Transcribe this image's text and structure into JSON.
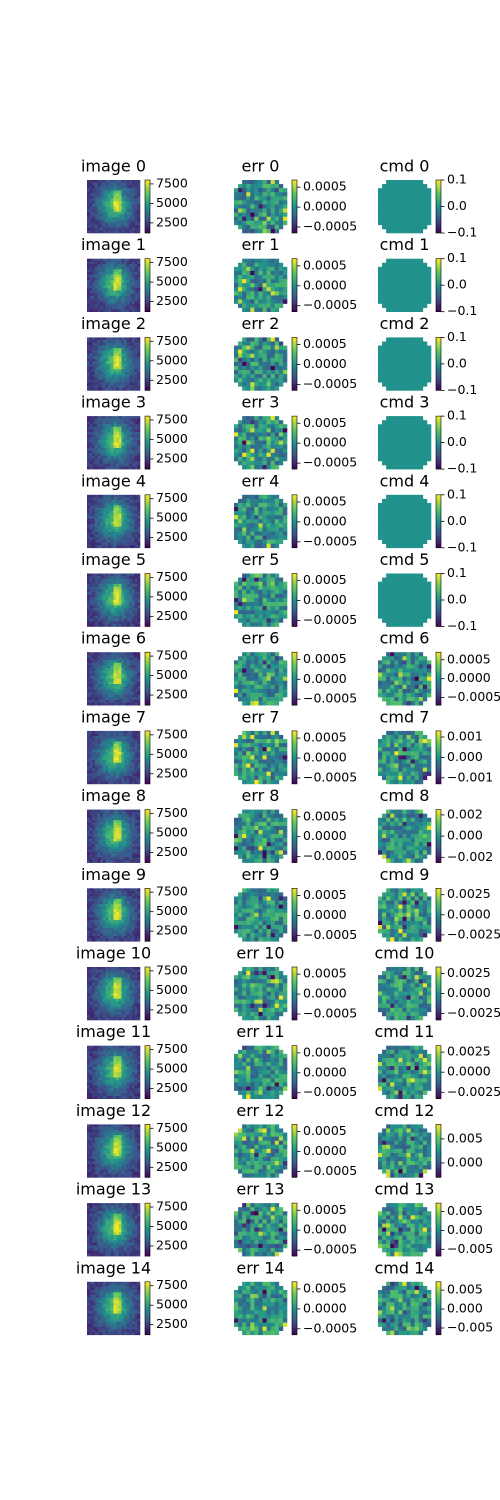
{
  "chart_data": [
    {
      "type": "heatmap",
      "title": "image 0",
      "clim": [
        1200,
        8000
      ],
      "cticks": [
        2500,
        5000,
        7500
      ]
    },
    {
      "type": "heatmap",
      "title": "err 0",
      "clim": [
        -0.00065,
        0.00068
      ],
      "cticks": [
        {
          "value": -0.0005,
          "label": "−0.0005"
        },
        {
          "value": 0,
          "label": "0.0000"
        },
        {
          "value": 0.0005,
          "label": "0.0005"
        }
      ]
    },
    {
      "type": "heatmap",
      "title": "cmd 0",
      "clim": [
        -0.1,
        0.1
      ],
      "cticks": [
        {
          "value": -0.1,
          "label": "−0.1"
        },
        {
          "value": 0,
          "label": "0.0"
        },
        0.1
      ]
    },
    {
      "type": "heatmap",
      "title": "image 1",
      "clim": [
        1200,
        8000
      ],
      "cticks": [
        2500,
        5000,
        7500
      ]
    },
    {
      "type": "heatmap",
      "title": "err 1",
      "clim": [
        -0.00065,
        0.00068
      ],
      "cticks": [
        {
          "value": -0.0005,
          "label": "−0.0005"
        },
        {
          "value": 0,
          "label": "0.0000"
        },
        {
          "value": 0.0005,
          "label": "0.0005"
        }
      ]
    },
    {
      "type": "heatmap",
      "title": "cmd 1",
      "clim": [
        -0.1,
        0.1
      ],
      "cticks": [
        {
          "value": -0.1,
          "label": "−0.1"
        },
        {
          "value": 0,
          "label": "0.0"
        },
        0.1
      ]
    },
    {
      "type": "heatmap",
      "title": "image 2",
      "clim": [
        1200,
        8000
      ],
      "cticks": [
        2500,
        5000,
        7500
      ]
    },
    {
      "type": "heatmap",
      "title": "err 2",
      "clim": [
        -0.00065,
        0.00068
      ],
      "cticks": [
        {
          "value": -0.0005,
          "label": "−0.0005"
        },
        {
          "value": 0,
          "label": "0.0000"
        },
        {
          "value": 0.0005,
          "label": "0.0005"
        }
      ]
    },
    {
      "type": "heatmap",
      "title": "cmd 2",
      "clim": [
        -0.1,
        0.1
      ],
      "cticks": [
        {
          "value": -0.1,
          "label": "−0.1"
        },
        {
          "value": 0,
          "label": "0.0"
        },
        0.1
      ]
    },
    {
      "type": "heatmap",
      "title": "image 3",
      "clim": [
        1200,
        8000
      ],
      "cticks": [
        2500,
        5000,
        7500
      ]
    },
    {
      "type": "heatmap",
      "title": "err 3",
      "clim": [
        -0.00065,
        0.00068
      ],
      "cticks": [
        {
          "value": -0.0005,
          "label": "−0.0005"
        },
        {
          "value": 0,
          "label": "0.0000"
        },
        {
          "value": 0.0005,
          "label": "0.0005"
        }
      ]
    },
    {
      "type": "heatmap",
      "title": "cmd 3",
      "clim": [
        -0.1,
        0.1
      ],
      "cticks": [
        {
          "value": -0.1,
          "label": "−0.1"
        },
        {
          "value": 0,
          "label": "0.0"
        },
        0.1
      ]
    },
    {
      "type": "heatmap",
      "title": "image 4",
      "clim": [
        1200,
        8000
      ],
      "cticks": [
        2500,
        5000,
        7500
      ]
    },
    {
      "type": "heatmap",
      "title": "err 4",
      "clim": [
        -0.00065,
        0.00068
      ],
      "cticks": [
        {
          "value": -0.0005,
          "label": "−0.0005"
        },
        {
          "value": 0,
          "label": "0.0000"
        },
        {
          "value": 0.0005,
          "label": "0.0005"
        }
      ]
    },
    {
      "type": "heatmap",
      "title": "cmd 4",
      "clim": [
        -0.1,
        0.1
      ],
      "cticks": [
        {
          "value": -0.1,
          "label": "−0.1"
        },
        {
          "value": 0,
          "label": "0.0"
        },
        0.1
      ]
    },
    {
      "type": "heatmap",
      "title": "image 5",
      "clim": [
        1200,
        8000
      ],
      "cticks": [
        2500,
        5000,
        7500
      ]
    },
    {
      "type": "heatmap",
      "title": "err 5",
      "clim": [
        -0.00065,
        0.00068
      ],
      "cticks": [
        {
          "value": -0.0005,
          "label": "−0.0005"
        },
        {
          "value": 0,
          "label": "0.0000"
        },
        {
          "value": 0.0005,
          "label": "0.0005"
        }
      ]
    },
    {
      "type": "heatmap",
      "title": "cmd 5",
      "clim": [
        -0.1,
        0.1
      ],
      "cticks": [
        {
          "value": -0.1,
          "label": "−0.1"
        },
        {
          "value": 0,
          "label": "0.0"
        },
        0.1
      ]
    },
    {
      "type": "heatmap",
      "title": "image 6",
      "clim": [
        1200,
        8000
      ],
      "cticks": [
        2500,
        5000,
        7500
      ]
    },
    {
      "type": "heatmap",
      "title": "err 6",
      "clim": [
        -0.00065,
        0.00068
      ],
      "cticks": [
        {
          "value": -0.0005,
          "label": "−0.0005"
        },
        {
          "value": 0,
          "label": "0.0000"
        },
        {
          "value": 0.0005,
          "label": "0.0005"
        }
      ]
    },
    {
      "type": "heatmap",
      "title": "cmd 6",
      "clim": [
        -0.0007,
        0.0007
      ],
      "cticks": [
        {
          "value": -0.0005,
          "label": "−0.0005"
        },
        {
          "value": 0,
          "label": "0.0000"
        },
        {
          "value": 0.0005,
          "label": "0.0005"
        }
      ]
    },
    {
      "type": "heatmap",
      "title": "image 7",
      "clim": [
        1200,
        8000
      ],
      "cticks": [
        2500,
        5000,
        7500
      ]
    },
    {
      "type": "heatmap",
      "title": "err 7",
      "clim": [
        -0.00065,
        0.00068
      ],
      "cticks": [
        {
          "value": -0.0005,
          "label": "−0.0005"
        },
        {
          "value": 0,
          "label": "0.0000"
        },
        {
          "value": 0.0005,
          "label": "0.0005"
        }
      ]
    },
    {
      "type": "heatmap",
      "title": "cmd 7",
      "clim": [
        -0.0013,
        0.0013
      ],
      "cticks": [
        {
          "value": -0.001,
          "label": "−0.001"
        },
        {
          "value": 0,
          "label": "0.000"
        },
        0.001
      ]
    },
    {
      "type": "heatmap",
      "title": "image 8",
      "clim": [
        1200,
        8000
      ],
      "cticks": [
        2500,
        5000,
        7500
      ]
    },
    {
      "type": "heatmap",
      "title": "err 8",
      "clim": [
        -0.00065,
        0.00068
      ],
      "cticks": [
        {
          "value": -0.0005,
          "label": "−0.0005"
        },
        {
          "value": 0,
          "label": "0.0000"
        },
        {
          "value": 0.0005,
          "label": "0.0005"
        }
      ]
    },
    {
      "type": "heatmap",
      "title": "cmd 8",
      "clim": [
        -0.0025,
        0.0025
      ],
      "cticks": [
        {
          "value": -0.002,
          "label": "−0.002"
        },
        {
          "value": 0,
          "label": "0.000"
        },
        0.002
      ]
    },
    {
      "type": "heatmap",
      "title": "image 9",
      "clim": [
        1200,
        8000
      ],
      "cticks": [
        2500,
        5000,
        7500
      ]
    },
    {
      "type": "heatmap",
      "title": "err 9",
      "clim": [
        -0.00065,
        0.00068
      ],
      "cticks": [
        {
          "value": -0.0005,
          "label": "−0.0005"
        },
        {
          "value": 0,
          "label": "0.0000"
        },
        {
          "value": 0.0005,
          "label": "0.0005"
        }
      ]
    },
    {
      "type": "heatmap",
      "title": "cmd 9",
      "clim": [
        -0.0033,
        0.0033
      ],
      "cticks": [
        {
          "value": -0.0025,
          "label": "−0.0025"
        },
        {
          "value": 0,
          "label": "0.0000"
        },
        0.0025
      ]
    },
    {
      "type": "heatmap",
      "title": "image 10",
      "clim": [
        1200,
        8000
      ],
      "cticks": [
        2500,
        5000,
        7500
      ]
    },
    {
      "type": "heatmap",
      "title": "err 10",
      "clim": [
        -0.00065,
        0.00068
      ],
      "cticks": [
        {
          "value": -0.0005,
          "label": "−0.0005"
        },
        {
          "value": 0,
          "label": "0.0000"
        },
        {
          "value": 0.0005,
          "label": "0.0005"
        }
      ]
    },
    {
      "type": "heatmap",
      "title": "cmd 10",
      "clim": [
        -0.0033,
        0.0033
      ],
      "cticks": [
        {
          "value": -0.0025,
          "label": "−0.0025"
        },
        {
          "value": 0,
          "label": "0.0000"
        },
        0.0025
      ]
    },
    {
      "type": "heatmap",
      "title": "image 11",
      "clim": [
        1200,
        8000
      ],
      "cticks": [
        2500,
        5000,
        7500
      ]
    },
    {
      "type": "heatmap",
      "title": "err 11",
      "clim": [
        -0.00065,
        0.00068
      ],
      "cticks": [
        {
          "value": -0.0005,
          "label": "−0.0005"
        },
        {
          "value": 0,
          "label": "0.0000"
        },
        {
          "value": 0.0005,
          "label": "0.0005"
        }
      ]
    },
    {
      "type": "heatmap",
      "title": "cmd 11",
      "clim": [
        -0.0033,
        0.0033
      ],
      "cticks": [
        {
          "value": -0.0025,
          "label": "−0.0025"
        },
        {
          "value": 0,
          "label": "0.0000"
        },
        0.0025
      ]
    },
    {
      "type": "heatmap",
      "title": "image 12",
      "clim": [
        1200,
        8000
      ],
      "cticks": [
        2500,
        5000,
        7500
      ]
    },
    {
      "type": "heatmap",
      "title": "err 12",
      "clim": [
        -0.00065,
        0.00068
      ],
      "cticks": [
        {
          "value": -0.0005,
          "label": "−0.0005"
        },
        {
          "value": 0,
          "label": "0.0000"
        },
        {
          "value": 0.0005,
          "label": "0.0005"
        }
      ]
    },
    {
      "type": "heatmap",
      "title": "cmd 12",
      "clim": [
        -0.003,
        0.008
      ],
      "cticks": [
        {
          "value": 0,
          "label": "0.000"
        },
        0.005
      ]
    },
    {
      "type": "heatmap",
      "title": "image 13",
      "clim": [
        1200,
        8000
      ],
      "cticks": [
        2500,
        5000,
        7500
      ]
    },
    {
      "type": "heatmap",
      "title": "err 13",
      "clim": [
        -0.00065,
        0.00068
      ],
      "cticks": [
        {
          "value": -0.0005,
          "label": "−0.0005"
        },
        {
          "value": 0,
          "label": "0.0000"
        },
        {
          "value": 0.0005,
          "label": "0.0005"
        }
      ]
    },
    {
      "type": "heatmap",
      "title": "cmd 13",
      "clim": [
        -0.0068,
        0.0072
      ],
      "cticks": [
        {
          "value": -0.005,
          "label": "−0.005"
        },
        {
          "value": 0,
          "label": "0.000"
        },
        0.005
      ]
    },
    {
      "type": "heatmap",
      "title": "image 14",
      "clim": [
        1200,
        8000
      ],
      "cticks": [
        2500,
        5000,
        7500
      ]
    },
    {
      "type": "heatmap",
      "title": "err 14",
      "clim": [
        -0.00065,
        0.00068
      ],
      "cticks": [
        {
          "value": -0.0005,
          "label": "−0.0005"
        },
        {
          "value": 0,
          "label": "0.0000"
        },
        {
          "value": 0.0005,
          "label": "0.0005"
        }
      ]
    },
    {
      "type": "heatmap",
      "title": "cmd 14",
      "clim": [
        -0.0068,
        0.0072
      ],
      "cticks": [
        {
          "value": -0.005,
          "label": "−0.005"
        },
        {
          "value": 0,
          "label": "0.000"
        },
        0.005
      ]
    }
  ]
}
